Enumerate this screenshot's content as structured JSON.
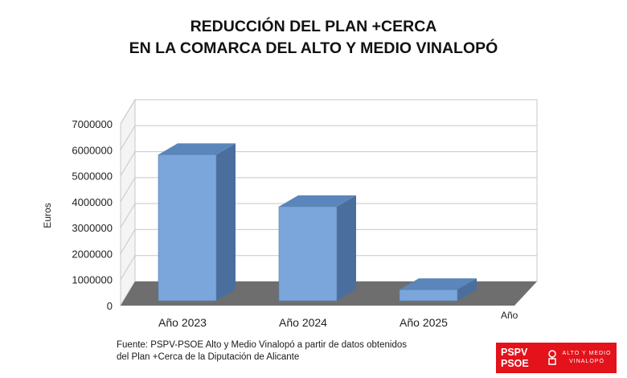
{
  "title": {
    "line1": "REDUCCIÓN DEL PLAN +CERCA",
    "line2": "EN LA COMARCA DEL ALTO Y MEDIO VINALOPÓ"
  },
  "source": {
    "line1": "Fuente: PSPV-PSOE Alto y Medio Vinalopó a partir de datos obtenidos",
    "line2": "del Plan +Cerca de la Diputación de Alicante"
  },
  "logo": {
    "line1": "PSPV",
    "line2": "PSOE",
    "region1": "ALTO Y MEDIO",
    "region2": "VINALOPÓ",
    "icon": "rose-fist-icon",
    "color": "#e3121b"
  },
  "chart_data": {
    "type": "bar",
    "categories": [
      "Año 2023",
      "Año 2024",
      "Año 2025"
    ],
    "values": [
      6000000,
      4000000,
      800000
    ],
    "xlabel": "Año",
    "ylabel": "Euros",
    "ylim": [
      0,
      7000000
    ],
    "yticks": [
      "0",
      "1000000",
      "2000000",
      "3000000",
      "4000000",
      "5000000",
      "6000000",
      "7000000"
    ],
    "grid": true,
    "bar_color": "#7aa6db",
    "bar_side_color": "#4a6f9e",
    "bar_top_color": "#5b86bb",
    "floor_color": "#6e6e6e"
  }
}
